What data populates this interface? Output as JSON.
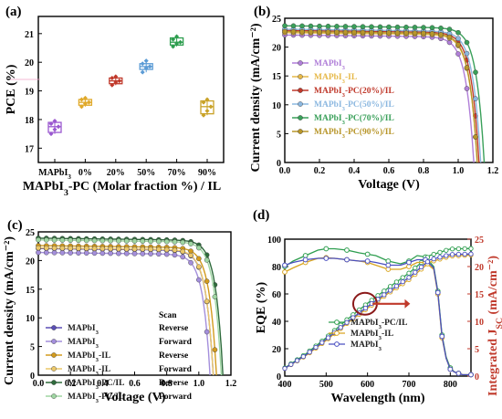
{
  "chart_data": [
    {
      "panel": "(a)",
      "type": "box",
      "xlabel": "MAPbI3-PC (Molar fraction %) / IL",
      "ylabel": "PCE (%)",
      "categories": [
        "MAPbI3",
        "0%",
        "20%",
        "50%",
        "70%",
        "90%"
      ],
      "xlabel_text": {
        "pre": "MAPbI",
        "sub": "3",
        "post": "-PC (Molar fraction %) / IL"
      },
      "ylim": [
        16.5,
        21.6
      ],
      "yticks": [
        17,
        18,
        19,
        20,
        21
      ],
      "colors": [
        "#9b59d0",
        "#e0a92a",
        "#c0392b",
        "#5b9bd5",
        "#2e9e4f",
        "#c9a227"
      ],
      "boxes": [
        {
          "q1": 17.55,
          "median": 17.75,
          "q3": 17.9,
          "min": 17.5,
          "max": 17.95,
          "points": [
            17.5,
            17.65,
            17.75,
            17.85,
            17.95
          ]
        },
        {
          "q1": 18.5,
          "median": 18.6,
          "q3": 18.7,
          "min": 18.45,
          "max": 18.75,
          "points": [
            18.45,
            18.55,
            18.6,
            18.7,
            18.75
          ]
        },
        {
          "q1": 19.25,
          "median": 19.35,
          "q3": 19.45,
          "min": 19.2,
          "max": 19.5,
          "points": [
            19.2,
            19.3,
            19.35,
            19.45,
            19.5
          ]
        },
        {
          "q1": 19.75,
          "median": 19.85,
          "q3": 19.95,
          "min": 19.65,
          "max": 20.05,
          "points": [
            19.65,
            19.8,
            19.85,
            19.95,
            20.05
          ]
        },
        {
          "q1": 20.6,
          "median": 20.7,
          "q3": 20.85,
          "min": 20.55,
          "max": 20.9,
          "points": [
            20.55,
            20.65,
            20.7,
            20.8,
            20.9
          ]
        },
        {
          "q1": 18.2,
          "median": 18.45,
          "q3": 18.65,
          "min": 18.15,
          "max": 18.7,
          "points": [
            18.15,
            18.3,
            18.45,
            18.6,
            18.7
          ]
        }
      ]
    },
    {
      "panel": "(b)",
      "type": "line",
      "xlabel": "Voltage (V)",
      "ylabel": "Current density (mA/cm⁻²)",
      "xlim": [
        0,
        1.2
      ],
      "ylim": [
        0,
        25
      ],
      "xticks": [
        0.0,
        0.2,
        0.4,
        0.6,
        0.8,
        1.0,
        1.2
      ],
      "yticks": [
        0,
        5,
        10,
        15,
        20,
        25
      ],
      "series": [
        {
          "name": "MAPbI3",
          "color": "#b07fd8",
          "jsc": 22.1,
          "voc": 1.09,
          "knee": 0.87
        },
        {
          "name": "MAPbI3-IL",
          "color": "#e6b94a",
          "jsc": 22.5,
          "voc": 1.11,
          "knee": 0.88
        },
        {
          "name": "MAPbI3-PC(20%)/IL",
          "color": "#c0392b",
          "jsc": 22.9,
          "voc": 1.12,
          "knee": 0.9
        },
        {
          "name": "MAPbI3-PC(50%)/IL",
          "color": "#8cb8e0",
          "jsc": 23.1,
          "voc": 1.13,
          "knee": 0.91
        },
        {
          "name": "MAPbI3-PC(70%)/IL",
          "color": "#3aa05a",
          "jsc": 23.7,
          "voc": 1.15,
          "knee": 0.93
        },
        {
          "name": "MAPbI3-PC(90%)/IL",
          "color": "#b8962a",
          "jsc": 22.7,
          "voc": 1.11,
          "knee": 0.89
        }
      ]
    },
    {
      "panel": "(c)",
      "type": "line",
      "xlabel": "Voltage (V)",
      "ylabel": "Current density (mA/cm⁻²)",
      "xlim": [
        0,
        1.2
      ],
      "ylim": [
        0,
        25
      ],
      "xticks": [
        0.0,
        0.2,
        0.4,
        0.6,
        0.8,
        1.0,
        1.2
      ],
      "yticks": [
        0,
        5,
        10,
        15,
        20,
        25
      ],
      "legend_scan_header": "Scan",
      "series": [
        {
          "name": "MAPbI3",
          "scan": "Reverse",
          "color": "#5b4fb5",
          "jsc": 22.1,
          "voc": 1.09,
          "knee": 0.87
        },
        {
          "name": "MAPbI3",
          "scan": "Forward",
          "color": "#a48fdc",
          "jsc": 21.4,
          "voc": 1.07,
          "knee": 0.82
        },
        {
          "name": "MAPbI3-IL",
          "scan": "Reverse",
          "color": "#d39b1e",
          "jsc": 22.6,
          "voc": 1.11,
          "knee": 0.89
        },
        {
          "name": "MAPbI3-IL",
          "scan": "Forward",
          "color": "#ecc86a",
          "jsc": 22.2,
          "voc": 1.09,
          "knee": 0.86
        },
        {
          "name": "MAPbI3-PC/IL",
          "scan": "Reverse",
          "color": "#2e6b3c",
          "jsc": 23.9,
          "voc": 1.15,
          "knee": 0.93
        },
        {
          "name": "MAPbI3-PC/IL",
          "scan": "Forward",
          "color": "#9fd6a2",
          "jsc": 23.6,
          "voc": 1.14,
          "knee": 0.91
        }
      ]
    },
    {
      "panel": "(d)",
      "type": "line",
      "xlabel": "Wavelength (nm)",
      "ylabel": "EQE (%)",
      "y2label": "Integrated J",
      "y2label_sub": "SC",
      "y2label_unit": "(mA/cm⁻²)",
      "xlim": [
        400,
        850
      ],
      "ylim": [
        0,
        100
      ],
      "y2lim": [
        0,
        25
      ],
      "xticks": [
        400,
        500,
        600,
        700,
        800
      ],
      "yticks": [
        0,
        20,
        40,
        60,
        80,
        100
      ],
      "y2ticks": [
        0,
        5,
        10,
        15,
        20,
        25
      ],
      "series": [
        {
          "name": "MAPbI3-PC/IL",
          "color": "#2e9e4f",
          "eqe_x": [
            400,
            420,
            450,
            480,
            500,
            520,
            550,
            580,
            600,
            620,
            650,
            680,
            700,
            720,
            740,
            760,
            770,
            775,
            780,
            790,
            800,
            810,
            820,
            830,
            850
          ],
          "eqe_y": [
            80,
            84,
            88,
            92,
            93,
            93,
            92,
            90,
            89,
            88,
            84,
            82,
            84,
            88,
            87,
            80,
            62,
            46,
            30,
            14,
            6,
            3,
            2,
            1,
            1
          ],
          "int_x": [
            400,
            450,
            500,
            550,
            600,
            650,
            700,
            750,
            800,
            850
          ],
          "int_y": [
            1.5,
            4,
            7,
            10.3,
            13.3,
            16.1,
            18.8,
            22,
            23.2,
            23.3
          ]
        },
        {
          "name": "MAPbI3-IL",
          "color": "#d9a520",
          "eqe_x": [
            400,
            420,
            450,
            480,
            500,
            520,
            550,
            580,
            600,
            620,
            650,
            680,
            700,
            720,
            740,
            760,
            770,
            775,
            780,
            790,
            800,
            810,
            820,
            830,
            850
          ],
          "eqe_y": [
            76,
            79,
            83,
            86,
            86.5,
            86,
            85,
            84,
            83,
            81,
            78,
            78,
            80,
            83,
            83,
            78,
            60,
            44,
            28,
            13,
            5,
            3,
            2,
            1,
            1
          ],
          "int_x": [
            400,
            450,
            500,
            550,
            600,
            650,
            700,
            750,
            800,
            850
          ],
          "int_y": [
            1.4,
            3.7,
            6.5,
            9.6,
            12.4,
            15.1,
            17.6,
            20.8,
            21.9,
            22.1
          ]
        },
        {
          "name": "MAPbI3",
          "color": "#4a4fc0",
          "eqe_x": [
            400,
            420,
            450,
            480,
            500,
            520,
            550,
            580,
            600,
            620,
            650,
            680,
            700,
            720,
            740,
            760,
            770,
            775,
            780,
            790,
            800,
            810,
            820,
            830,
            850
          ],
          "eqe_y": [
            81,
            83,
            85,
            86,
            86,
            86,
            85,
            84,
            84,
            83,
            81,
            81,
            83,
            85,
            85,
            79,
            61,
            45,
            29,
            13,
            5,
            3,
            2,
            1,
            1
          ],
          "int_x": [
            400,
            450,
            500,
            550,
            600,
            650,
            700,
            750,
            800,
            850
          ],
          "int_y": [
            1.4,
            3.8,
            6.7,
            9.8,
            12.7,
            15.4,
            18.0,
            21.2,
            22.2,
            22.3
          ]
        }
      ]
    }
  ],
  "legend_names": {
    "b": [
      {
        "pre": "MAPbI",
        "sub": "3",
        "post": ""
      },
      {
        "pre": "MAPbI",
        "sub": "3",
        "post": "-IL"
      },
      {
        "pre": "MAPbI",
        "sub": "3",
        "post": "-PC(20%)/IL"
      },
      {
        "pre": "MAPbI",
        "sub": "3",
        "post": "-PC(50%)/IL"
      },
      {
        "pre": "MAPbI",
        "sub": "3",
        "post": "-PC(70%)/IL"
      },
      {
        "pre": "MAPbI",
        "sub": "3",
        "post": "-PC(90%)/IL"
      }
    ],
    "c": [
      {
        "pre": "MAPbI",
        "sub": "3",
        "post": ""
      },
      {
        "pre": "MAPbI",
        "sub": "3",
        "post": ""
      },
      {
        "pre": "MAPbI",
        "sub": "3",
        "post": "-IL"
      },
      {
        "pre": "MAPbI",
        "sub": "3",
        "post": "-IL"
      },
      {
        "pre": "MAPbI",
        "sub": "3",
        "post": "-PC/IL"
      },
      {
        "pre": "MAPbI",
        "sub": "3",
        "post": "-PC/IL"
      }
    ],
    "d": [
      {
        "pre": "MAPbI",
        "sub": "3",
        "post": "-PC/IL"
      },
      {
        "pre": "MAPbI",
        "sub": "3",
        "post": "-IL"
      },
      {
        "pre": "MAPbI",
        "sub": "3",
        "post": ""
      }
    ]
  },
  "annotation_d": {
    "circle_color": "#8b1a1a",
    "arrow_color": "#c0392b"
  },
  "y2_color": "#c0392b"
}
